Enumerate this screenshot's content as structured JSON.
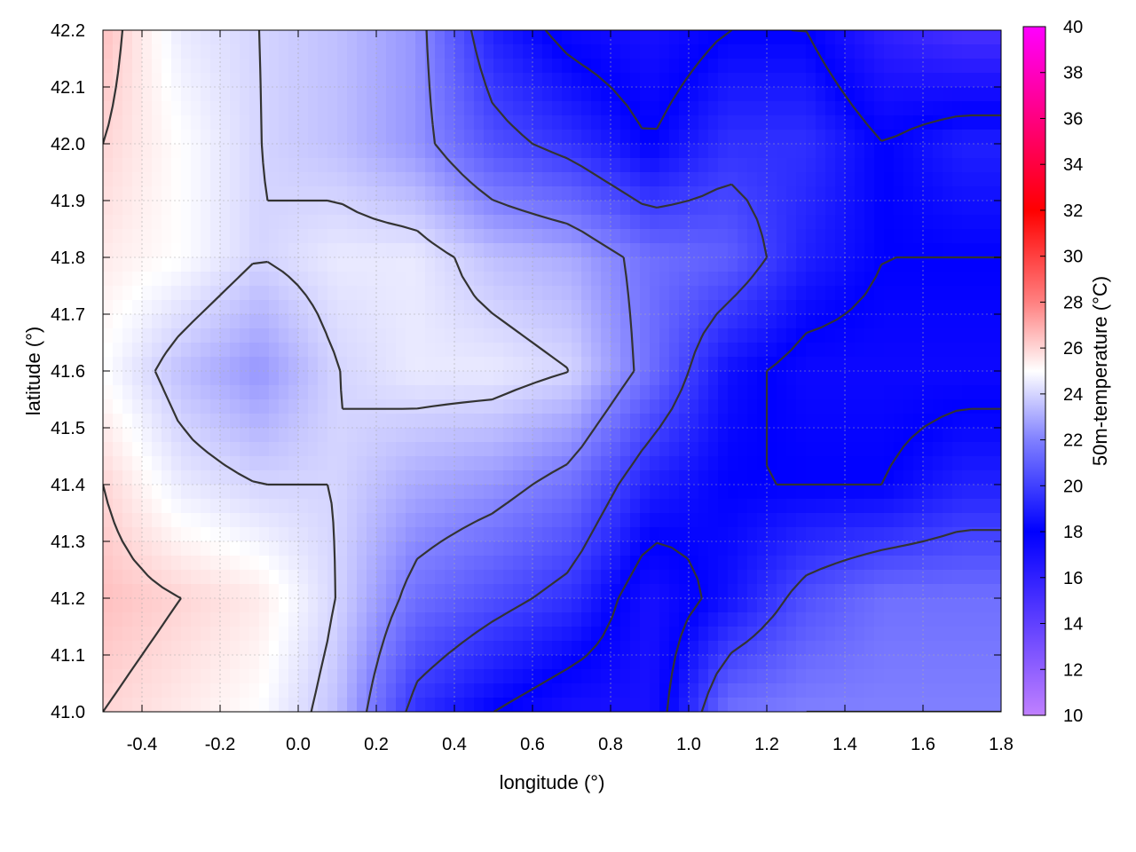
{
  "chart_data": {
    "type": "heatmap",
    "title": "",
    "xlabel": "longitude (°)",
    "ylabel": "latitude (°)",
    "colorbar_label": "50m-temperature (°C)",
    "xlim": [
      -0.5,
      1.8
    ],
    "ylim": [
      41.0,
      42.2
    ],
    "x_ticks": [
      "-0.4",
      "-0.2",
      "0.0",
      "0.2",
      "0.4",
      "0.6",
      "0.8",
      "1.0",
      "1.2",
      "1.4",
      "1.6",
      "1.8"
    ],
    "x_tick_values": [
      -0.4,
      -0.2,
      0.0,
      0.2,
      0.4,
      0.6,
      0.8,
      1.0,
      1.2,
      1.4,
      1.6,
      1.8
    ],
    "y_ticks": [
      "41.0",
      "41.1",
      "41.2",
      "41.3",
      "41.4",
      "41.5",
      "41.6",
      "41.7",
      "41.8",
      "41.9",
      "42.0",
      "42.1",
      "42.2"
    ],
    "y_tick_values": [
      41.0,
      41.1,
      41.2,
      41.3,
      41.4,
      41.5,
      41.6,
      41.7,
      41.8,
      41.9,
      42.0,
      42.1,
      42.2
    ],
    "colorbar_range": [
      10,
      40
    ],
    "colorbar_ticks": [
      "10",
      "12",
      "14",
      "16",
      "18",
      "20",
      "22",
      "24",
      "26",
      "28",
      "30",
      "32",
      "34",
      "36",
      "38",
      "40"
    ],
    "colorbar_tick_values": [
      10,
      12,
      14,
      16,
      18,
      20,
      22,
      24,
      26,
      28,
      30,
      32,
      34,
      36,
      38,
      40
    ],
    "colormap": [
      {
        "value": 10,
        "color": "#c080ff"
      },
      {
        "value": 14,
        "color": "#6040ff"
      },
      {
        "value": 18,
        "color": "#0000ff"
      },
      {
        "value": 22,
        "color": "#8080ff"
      },
      {
        "value": 25,
        "color": "#ffffff"
      },
      {
        "value": 28,
        "color": "#ff8080"
      },
      {
        "value": 32,
        "color": "#ff0000"
      },
      {
        "value": 36,
        "color": "#ff0080"
      },
      {
        "value": 40,
        "color": "#ff00ff"
      }
    ],
    "grid": true,
    "contours": true,
    "field_grid": {
      "lon": [
        -0.5,
        -0.3,
        -0.1,
        0.1,
        0.3,
        0.5,
        0.7,
        0.9,
        1.1,
        1.3,
        1.5,
        1.7,
        1.8
      ],
      "lat": [
        42.2,
        42.0,
        41.8,
        41.6,
        41.4,
        41.2,
        41.0
      ],
      "temperature": [
        [
          26.5,
          24.5,
          24.0,
          23.5,
          22.5,
          19.0,
          17.5,
          17.0,
          18.0,
          18.0,
          16.0,
          15.0,
          15.0
        ],
        [
          26.0,
          25.0,
          24.0,
          23.5,
          22.5,
          20.5,
          19.5,
          18.0,
          19.5,
          19.5,
          18.0,
          19.0,
          19.0
        ],
        [
          25.5,
          25.0,
          24.0,
          24.5,
          24.5,
          23.5,
          23.0,
          21.5,
          21.0,
          19.0,
          18.0,
          18.0,
          18.0
        ],
        [
          25.0,
          23.5,
          22.5,
          24.0,
          24.5,
          24.5,
          24.0,
          21.5,
          18.5,
          17.5,
          17.5,
          17.5,
          17.5
        ],
        [
          26.0,
          24.5,
          24.0,
          24.0,
          23.0,
          22.5,
          21.5,
          19.0,
          18.0,
          18.0,
          18.0,
          19.0,
          19.0
        ],
        [
          26.5,
          26.0,
          25.5,
          24.0,
          21.5,
          20.5,
          19.5,
          17.0,
          18.5,
          20.5,
          21.5,
          21.5,
          21.5
        ],
        [
          26.0,
          25.5,
          25.0,
          23.5,
          19.5,
          18.0,
          17.0,
          17.0,
          21.5,
          22.0,
          22.0,
          22.0,
          22.0
        ]
      ]
    }
  }
}
